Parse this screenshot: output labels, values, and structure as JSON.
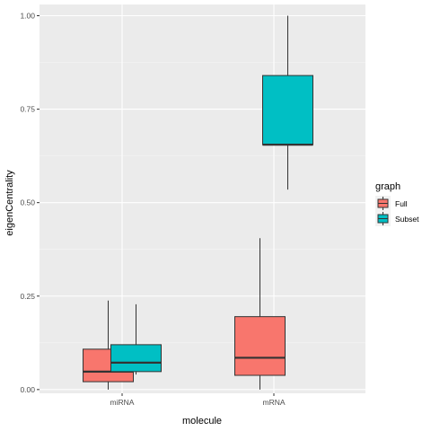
{
  "chart_data": {
    "type": "boxplot",
    "xlabel": "molecule",
    "ylabel": "eigenCentrality",
    "categories": [
      "miRNA",
      "mRNA"
    ],
    "ylim": [
      -0.01,
      1.03
    ],
    "yticks": [
      0.0,
      0.25,
      0.5,
      0.75,
      1.0
    ],
    "ytick_labels": [
      "0.00",
      "0.25",
      "0.50",
      "0.75",
      "1.00"
    ],
    "grid": true,
    "legend": {
      "title": "graph",
      "position": "right"
    },
    "series": [
      {
        "name": "Full",
        "color": "#F8766D",
        "boxes": [
          {
            "category": "miRNA",
            "min": 0.0,
            "q1": 0.021,
            "median": 0.048,
            "q3": 0.108,
            "max": 0.238
          },
          {
            "category": "mRNA",
            "min": 0.0,
            "q1": 0.038,
            "median": 0.085,
            "q3": 0.195,
            "max": 0.405
          }
        ]
      },
      {
        "name": "Subset",
        "color": "#00BFC4",
        "boxes": [
          {
            "category": "miRNA",
            "min": 0.04,
            "q1": 0.048,
            "median": 0.072,
            "q3": 0.12,
            "max": 0.228
          },
          {
            "category": "mRNA",
            "min": 0.535,
            "q1": 0.655,
            "median": 0.655,
            "q3": 0.84,
            "max": 1.0
          }
        ]
      }
    ]
  }
}
